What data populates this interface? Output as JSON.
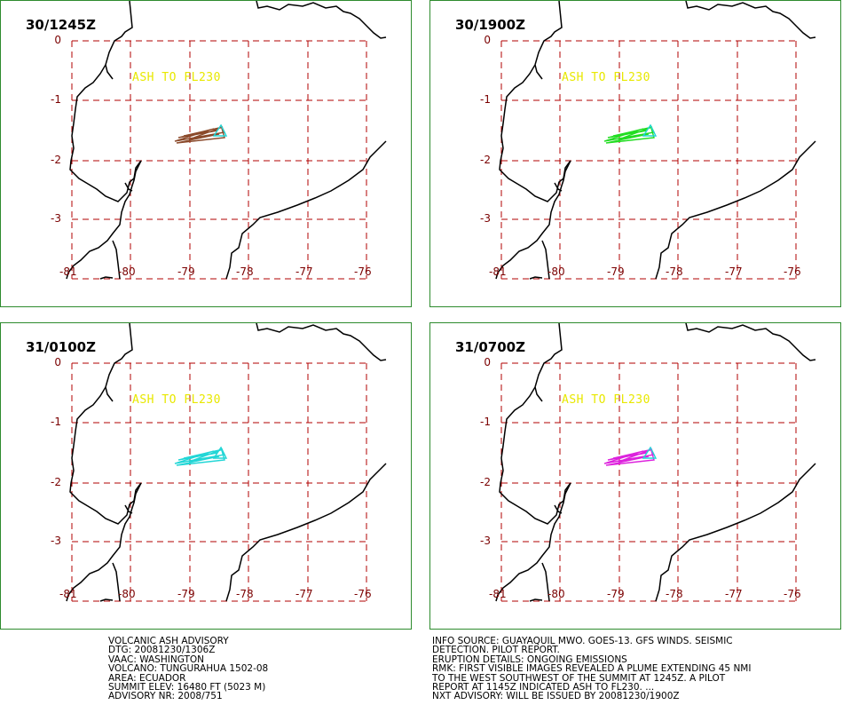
{
  "panels": [
    {
      "time": "30/1245Z",
      "ash_label": "ASH TO FL230",
      "plume_color": "#8b4a2b"
    },
    {
      "time": "30/1900Z",
      "ash_label": "ASH TO FL230",
      "plume_color": "#22dd22"
    },
    {
      "time": "31/0100Z",
      "ash_label": "ASH TO FL230",
      "plume_color": "#22d6d6"
    },
    {
      "time": "31/0700Z",
      "ash_label": "ASH TO FL230",
      "plume_color": "#dd22dd"
    }
  ],
  "lat_ticks": [
    "0",
    "-1",
    "-2",
    "-3"
  ],
  "lon_ticks": [
    "-81",
    "-80",
    "-79",
    "-78",
    "-77",
    "-76"
  ],
  "colors": {
    "grid": "#b00000",
    "border": "#2e8b2e",
    "label": "#e8e800",
    "summit": "#22d6d6"
  },
  "advisory_left": [
    "VOLCANIC ASH ADVISORY",
    "DTG: 20081230/1306Z",
    "VAAC: WASHINGTON",
    "VOLCANO: TUNGURAHUA 1502-08",
    "AREA: ECUADOR",
    "SUMMIT ELEV: 16480 FT (5023 M)",
    "ADVISORY NR: 2008/751"
  ],
  "advisory_right": [
    "INFO SOURCE: GUAYAQUIL MWO. GOES-13. GFS WINDS. SEISMIC",
    "DETECTION. PILOT REPORT.",
    "ERUPTION DETAILS: ONGOING EMISSIONS",
    "RMK: FIRST VISIBLE IMAGES REVEALED A PLUME EXTENDING 45 NMI",
    "TO THE WEST SOUTHWEST OF THE SUMMIT AT 1245Z. A PILOT",
    "REPORT AT 1145Z INDICATED ASH TO FL230. ...",
    "NXT ADVISORY: WILL BE ISSUED BY 20081230/1900Z"
  ]
}
